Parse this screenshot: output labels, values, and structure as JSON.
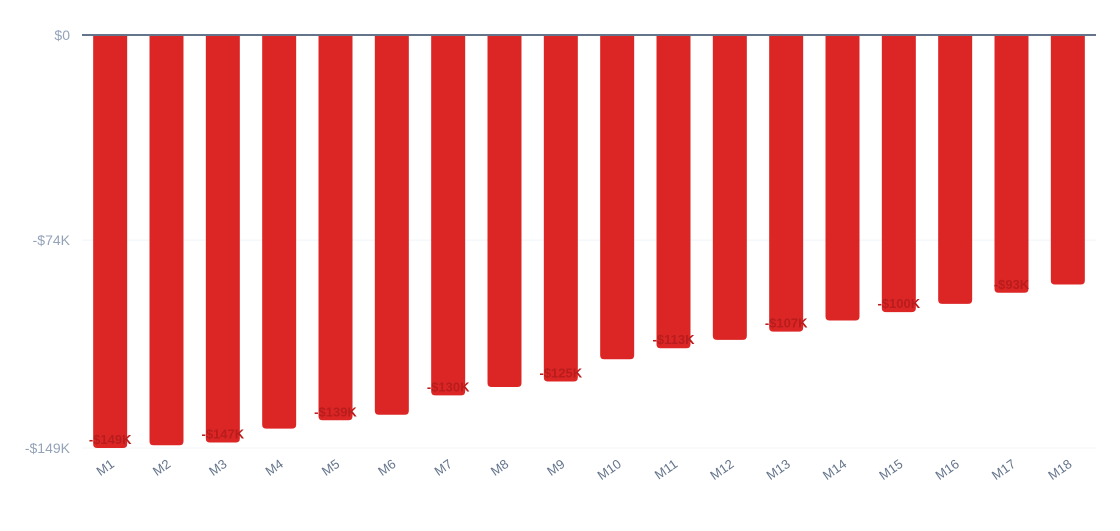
{
  "chart_data": {
    "type": "bar",
    "title": "",
    "xlabel": "",
    "ylabel": "",
    "categories": [
      "M1",
      "M2",
      "M3",
      "M4",
      "M5",
      "M6",
      "M7",
      "M8",
      "M9",
      "M10",
      "M11",
      "M12",
      "M13",
      "M14",
      "M15",
      "M16",
      "M17",
      "M18"
    ],
    "values": [
      -149,
      -148,
      -147,
      -142,
      -139,
      -137,
      -130,
      -127,
      -125,
      -117,
      -113,
      -110,
      -107,
      -103,
      -100,
      -97,
      -93,
      -90
    ],
    "value_unit": "$K",
    "data_labels": [
      {
        "index": 0,
        "text": "-$149K"
      },
      {
        "index": 2,
        "text": "-$147K"
      },
      {
        "index": 4,
        "text": "-$139K"
      },
      {
        "index": 6,
        "text": "-$130K"
      },
      {
        "index": 8,
        "text": "-$125K"
      },
      {
        "index": 10,
        "text": "-$113K"
      },
      {
        "index": 12,
        "text": "-$107K"
      },
      {
        "index": 14,
        "text": "-$100K"
      },
      {
        "index": 16,
        "text": "-$93K"
      }
    ],
    "y_ticks": [
      {
        "value": 0,
        "label": "$0"
      },
      {
        "value": -74,
        "label": "-$74K"
      },
      {
        "value": -149,
        "label": "-$149K"
      }
    ],
    "ylim": [
      -149,
      0
    ],
    "grid": true,
    "legend": "none",
    "colors": {
      "bar": "#dc2626",
      "data_label": "#b91c1c",
      "zero_line": "#64748b",
      "grid": "#f1f5f9",
      "tick_text": "#94a3b8",
      "x_tick_text": "#64748b"
    }
  }
}
